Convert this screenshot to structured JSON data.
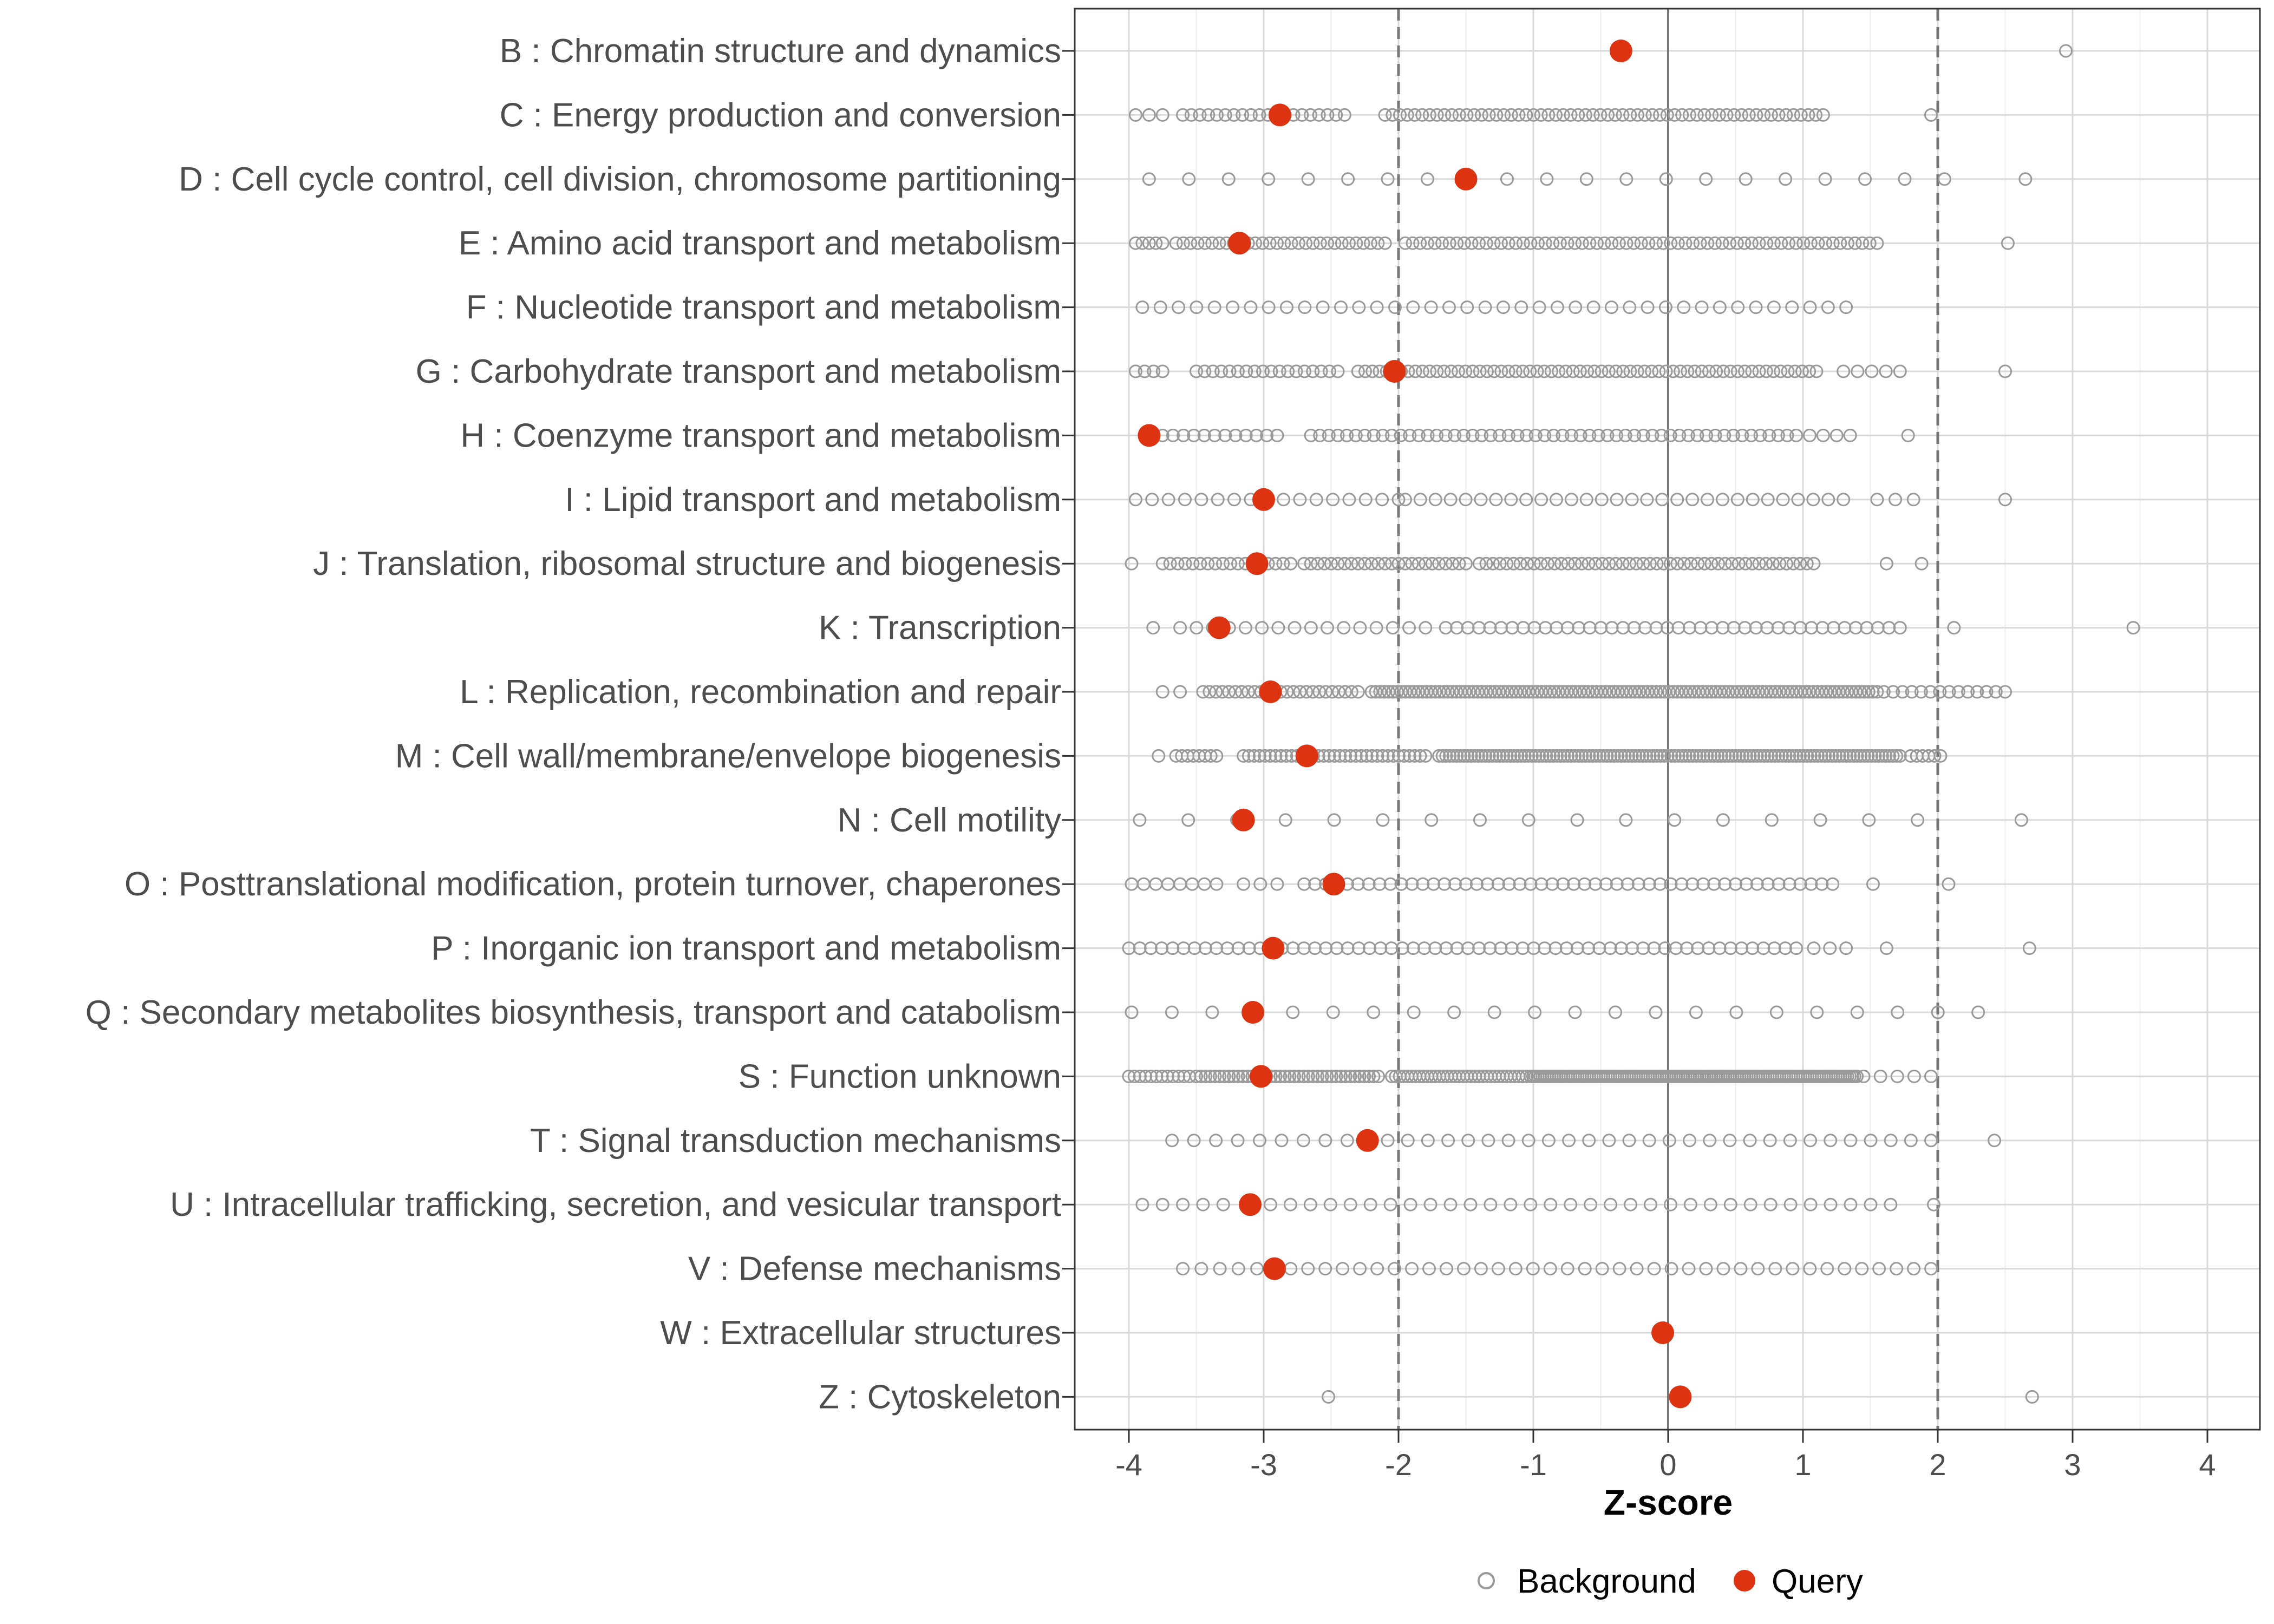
{
  "chart_data": {
    "type": "scatter",
    "title": "",
    "xlabel": "Z-score",
    "ylabel": "",
    "xlim": [
      -4.4,
      4.4
    ],
    "xticks": [
      -4,
      -3,
      -2,
      -1,
      0,
      1,
      2,
      3,
      4
    ],
    "reference_lines": {
      "solid": [
        0
      ],
      "dashed": [
        -2,
        2
      ]
    },
    "grid": true,
    "legend": {
      "position": "bottom",
      "entries": [
        "Background",
        "Query"
      ]
    },
    "colors": {
      "background": "#9a9a9a",
      "query": "#dd3311",
      "grid": "#d9d9d9"
    },
    "categories": [
      {
        "label": "B : Chromatin structure and dynamics",
        "query": -0.35,
        "background": [
          [
            2.95,
            2.95,
            1
          ]
        ]
      },
      {
        "label": "C : Energy production and conversion",
        "query": -2.88,
        "background": [
          [
            -3.95,
            -3.75,
            3
          ],
          [
            -3.6,
            -2.4,
            20
          ],
          [
            -2.1,
            1.15,
            60
          ],
          [
            1.95,
            1.95,
            1
          ]
        ]
      },
      {
        "label": "D : Cell cycle control, cell division, chromosome partitioning",
        "query": -1.5,
        "background": [
          [
            -3.85,
            2.05,
            21
          ],
          [
            2.65,
            2.65,
            1
          ]
        ]
      },
      {
        "label": "E : Amino acid transport and metabolism",
        "query": -3.18,
        "background": [
          [
            -3.95,
            -3.75,
            5
          ],
          [
            -3.65,
            -2.1,
            30
          ],
          [
            -1.95,
            1.55,
            65
          ],
          [
            2.52,
            2.52,
            1
          ]
        ]
      },
      {
        "label": "F : Nucleotide transport and metabolism",
        "query": null,
        "background": [
          [
            -3.9,
            1.32,
            40
          ]
        ]
      },
      {
        "label": "G : Carbohydrate transport and metabolism",
        "query": -2.03,
        "background": [
          [
            -3.95,
            -3.75,
            4
          ],
          [
            -3.5,
            -2.45,
            18
          ],
          [
            -2.3,
            1.1,
            65
          ],
          [
            1.3,
            1.72,
            5
          ],
          [
            2.5,
            2.5,
            1
          ]
        ]
      },
      {
        "label": "H : Coenzyme transport and metabolism",
        "query": -3.85,
        "background": [
          [
            -3.75,
            -2.9,
            12
          ],
          [
            -2.65,
            0.95,
            55
          ],
          [
            1.05,
            1.35,
            4
          ],
          [
            1.78,
            1.78,
            1
          ]
        ]
      },
      {
        "label": "I : Lipid transport and metabolism",
        "query": -3.0,
        "background": [
          [
            -3.95,
            -2.0,
            17
          ],
          [
            -1.95,
            1.3,
            30
          ],
          [
            1.55,
            1.82,
            3
          ],
          [
            2.5,
            2.5,
            1
          ]
        ]
      },
      {
        "label": "J : Translation, ribosomal structure and biogenesis",
        "query": -3.05,
        "background": [
          [
            -3.98,
            -3.98,
            1
          ],
          [
            -3.75,
            -2.8,
            18
          ],
          [
            -2.7,
            -1.5,
            25
          ],
          [
            -1.4,
            1.08,
            50
          ],
          [
            1.62,
            1.88,
            2
          ]
        ]
      },
      {
        "label": "K : Transcription",
        "query": -3.33,
        "background": [
          [
            -3.82,
            -3.82,
            1
          ],
          [
            -3.62,
            -1.8,
            16
          ],
          [
            -1.65,
            1.72,
            42
          ],
          [
            2.12,
            2.12,
            1
          ],
          [
            3.45,
            3.45,
            1
          ]
        ]
      },
      {
        "label": "L : Replication, recombination and repair",
        "query": -2.95,
        "background": [
          [
            -3.75,
            -3.62,
            2
          ],
          [
            -3.45,
            -2.3,
            25
          ],
          [
            -2.2,
            1.55,
            120
          ],
          [
            1.6,
            2.5,
            14
          ]
        ]
      },
      {
        "label": "M : Cell wall/membrane/envelope biogenesis",
        "query": -2.68,
        "background": [
          [
            -3.78,
            -3.78,
            1
          ],
          [
            -3.65,
            -3.35,
            8
          ],
          [
            -3.15,
            -1.8,
            35
          ],
          [
            -1.7,
            1.72,
            130
          ],
          [
            1.8,
            2.02,
            6
          ]
        ]
      },
      {
        "label": "N : Cell motility",
        "query": -3.15,
        "background": [
          [
            -3.92,
            1.85,
            17
          ],
          [
            2.62,
            2.62,
            1
          ]
        ]
      },
      {
        "label": "O : Posttranslational modification, protein turnover, chaperones",
        "query": -2.48,
        "background": [
          [
            -3.98,
            -3.35,
            8
          ],
          [
            -3.15,
            -2.9,
            3
          ],
          [
            -2.7,
            1.22,
            50
          ],
          [
            1.52,
            1.52,
            1
          ],
          [
            2.08,
            2.08,
            1
          ]
        ]
      },
      {
        "label": "P : Inorganic ion transport and metabolism",
        "query": -2.93,
        "background": [
          [
            -4.0,
            0.95,
            62
          ],
          [
            1.08,
            1.32,
            3
          ],
          [
            1.62,
            1.62,
            1
          ],
          [
            2.68,
            2.68,
            1
          ]
        ]
      },
      {
        "label": "Q : Secondary metabolites biosynthesis, transport and catabolism",
        "query": -3.08,
        "background": [
          [
            -3.98,
            2.3,
            22
          ]
        ]
      },
      {
        "label": "S : Function unknown",
        "query": -3.02,
        "background": [
          [
            -4.0,
            -3.55,
            12
          ],
          [
            -3.5,
            -2.15,
            40
          ],
          [
            -2.05,
            -1.05,
            35
          ],
          [
            -1.02,
            1.4,
            140
          ],
          [
            1.45,
            1.95,
            5
          ]
        ]
      },
      {
        "label": "T : Signal transduction mechanisms",
        "query": -2.23,
        "background": [
          [
            -3.68,
            -2.38,
            9
          ],
          [
            -2.08,
            1.95,
            28
          ],
          [
            2.42,
            2.42,
            1
          ]
        ]
      },
      {
        "label": "U : Intracellular trafficking, secretion, and vesicular transport",
        "query": -3.1,
        "background": [
          [
            -3.9,
            -3.3,
            5
          ],
          [
            -2.95,
            1.65,
            32
          ],
          [
            1.97,
            1.97,
            1
          ]
        ]
      },
      {
        "label": "V : Defense mechanisms",
        "query": -2.92,
        "background": [
          [
            -3.6,
            -3.05,
            5
          ],
          [
            -2.8,
            1.95,
            38
          ]
        ]
      },
      {
        "label": "W : Extracellular structures",
        "query": -0.04,
        "background": []
      },
      {
        "label": "Z : Cytoskeleton",
        "query": 0.09,
        "background": [
          [
            -2.52,
            -2.52,
            1
          ],
          [
            2.7,
            2.7,
            1
          ]
        ]
      }
    ]
  }
}
